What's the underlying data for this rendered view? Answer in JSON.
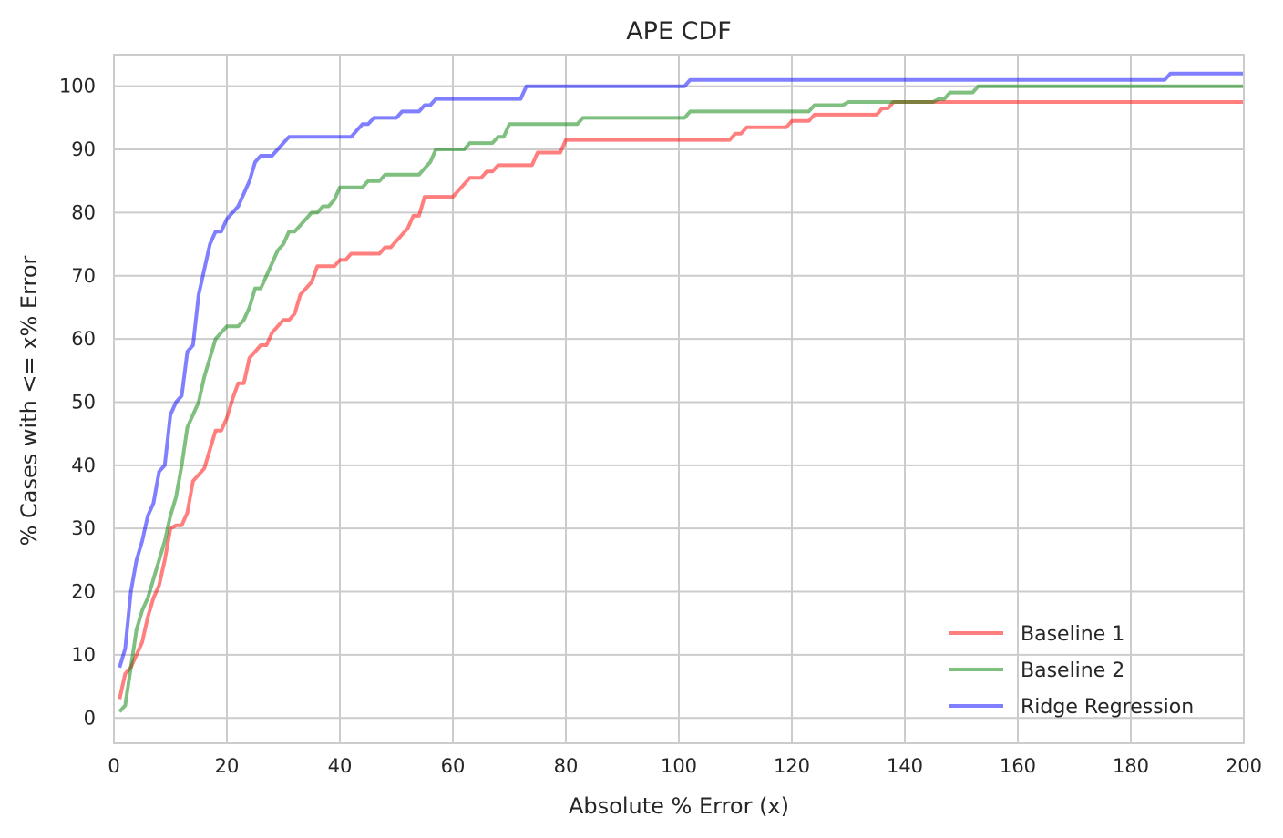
{
  "chart_data": {
    "type": "line",
    "title": "APE CDF",
    "xlabel": "Absolute % Error (x)",
    "ylabel": "% Cases with <= x% Error",
    "xlim": [
      0,
      200
    ],
    "ylim": [
      -4,
      105
    ],
    "xticks": [
      0,
      20,
      40,
      60,
      80,
      100,
      120,
      140,
      160,
      180,
      200
    ],
    "yticks": [
      0,
      10,
      20,
      30,
      40,
      50,
      60,
      70,
      80,
      90,
      100
    ],
    "grid": true,
    "legend_position": "lower-right",
    "series": [
      {
        "name": "Baseline 1",
        "color": "#ff0000",
        "opacity": 0.5,
        "points": [
          [
            1,
            3
          ],
          [
            2,
            7
          ],
          [
            3,
            8
          ],
          [
            4,
            10
          ],
          [
            5,
            12
          ],
          [
            6,
            16
          ],
          [
            7,
            19
          ],
          [
            8,
            21
          ],
          [
            9,
            25
          ],
          [
            10,
            30
          ],
          [
            11,
            30.5
          ],
          [
            12,
            30.5
          ],
          [
            13,
            32.5
          ],
          [
            14,
            37.5
          ],
          [
            15,
            38.5
          ],
          [
            16,
            39.5
          ],
          [
            17,
            42.5
          ],
          [
            18,
            45.5
          ],
          [
            19,
            45.5
          ],
          [
            20,
            47.5
          ],
          [
            21,
            50.5
          ],
          [
            22,
            53
          ],
          [
            23,
            53
          ],
          [
            24,
            57
          ],
          [
            25,
            58
          ],
          [
            26,
            59
          ],
          [
            27,
            59
          ],
          [
            28,
            61
          ],
          [
            29,
            62
          ],
          [
            30,
            63
          ],
          [
            31,
            63
          ],
          [
            32,
            64
          ],
          [
            33,
            67
          ],
          [
            34,
            68
          ],
          [
            35,
            69
          ],
          [
            36,
            71.5
          ],
          [
            37,
            71.5
          ],
          [
            38,
            71.5
          ],
          [
            39,
            71.5
          ],
          [
            40,
            72.5
          ],
          [
            41,
            72.5
          ],
          [
            42,
            73.5
          ],
          [
            43,
            73.5
          ],
          [
            44,
            73.5
          ],
          [
            45,
            73.5
          ],
          [
            46,
            73.5
          ],
          [
            47,
            73.5
          ],
          [
            48,
            74.5
          ],
          [
            49,
            74.5
          ],
          [
            50,
            75.5
          ],
          [
            51,
            76.5
          ],
          [
            52,
            77.5
          ],
          [
            53,
            79.5
          ],
          [
            54,
            79.5
          ],
          [
            55,
            82.5
          ],
          [
            56,
            82.5
          ],
          [
            57,
            82.5
          ],
          [
            58,
            82.5
          ],
          [
            59,
            82.5
          ],
          [
            60,
            82.5
          ],
          [
            61,
            83.5
          ],
          [
            62,
            84.5
          ],
          [
            63,
            85.5
          ],
          [
            64,
            85.5
          ],
          [
            65,
            85.5
          ],
          [
            66,
            86.5
          ],
          [
            67,
            86.5
          ],
          [
            68,
            87.5
          ],
          [
            69,
            87.5
          ],
          [
            70,
            87.5
          ],
          [
            71,
            87.5
          ],
          [
            72,
            87.5
          ],
          [
            73,
            87.5
          ],
          [
            74,
            87.5
          ],
          [
            75,
            89.5
          ],
          [
            76,
            89.5
          ],
          [
            77,
            89.5
          ],
          [
            78,
            89.5
          ],
          [
            79,
            89.5
          ],
          [
            80,
            91.5
          ],
          [
            100,
            91.5
          ],
          [
            109,
            91.5
          ],
          [
            110,
            92.5
          ],
          [
            111,
            92.5
          ],
          [
            112,
            93.5
          ],
          [
            118,
            93.5
          ],
          [
            119,
            93.5
          ],
          [
            120,
            94.5
          ],
          [
            122,
            94.5
          ],
          [
            123,
            94.5
          ],
          [
            124,
            95.5
          ],
          [
            135,
            95.5
          ],
          [
            136,
            96.5
          ],
          [
            137,
            96.5
          ],
          [
            138,
            97.5
          ],
          [
            145,
            97.5
          ],
          [
            146,
            97.5
          ],
          [
            147,
            97.5
          ],
          [
            200,
            97.5
          ]
        ]
      },
      {
        "name": "Baseline 2",
        "color": "#008000",
        "opacity": 0.5,
        "points": [
          [
            1,
            1
          ],
          [
            2,
            2
          ],
          [
            3,
            8
          ],
          [
            4,
            14
          ],
          [
            5,
            17
          ],
          [
            6,
            19
          ],
          [
            7,
            22
          ],
          [
            8,
            25
          ],
          [
            9,
            28
          ],
          [
            10,
            32
          ],
          [
            11,
            35
          ],
          [
            12,
            40
          ],
          [
            13,
            46
          ],
          [
            14,
            48
          ],
          [
            15,
            50
          ],
          [
            16,
            54
          ],
          [
            17,
            57
          ],
          [
            18,
            60
          ],
          [
            19,
            61
          ],
          [
            20,
            62
          ],
          [
            21,
            62
          ],
          [
            22,
            62
          ],
          [
            23,
            63
          ],
          [
            24,
            65
          ],
          [
            25,
            68
          ],
          [
            26,
            68
          ],
          [
            27,
            70
          ],
          [
            28,
            72
          ],
          [
            29,
            74
          ],
          [
            30,
            75
          ],
          [
            31,
            77
          ],
          [
            32,
            77
          ],
          [
            33,
            78
          ],
          [
            34,
            79
          ],
          [
            35,
            80
          ],
          [
            36,
            80
          ],
          [
            37,
            81
          ],
          [
            38,
            81
          ],
          [
            39,
            82
          ],
          [
            40,
            84
          ],
          [
            41,
            84
          ],
          [
            42,
            84
          ],
          [
            43,
            84
          ],
          [
            44,
            84
          ],
          [
            45,
            85
          ],
          [
            46,
            85
          ],
          [
            47,
            85
          ],
          [
            48,
            86
          ],
          [
            49,
            86
          ],
          [
            50,
            86
          ],
          [
            51,
            86
          ],
          [
            52,
            86
          ],
          [
            53,
            86
          ],
          [
            54,
            86
          ],
          [
            55,
            87
          ],
          [
            56,
            88
          ],
          [
            57,
            90
          ],
          [
            58,
            90
          ],
          [
            59,
            90
          ],
          [
            60,
            90
          ],
          [
            61,
            90
          ],
          [
            62,
            90
          ],
          [
            63,
            91
          ],
          [
            64,
            91
          ],
          [
            65,
            91
          ],
          [
            66,
            91
          ],
          [
            67,
            91
          ],
          [
            68,
            92
          ],
          [
            69,
            92
          ],
          [
            70,
            94
          ],
          [
            80,
            94
          ],
          [
            81,
            94
          ],
          [
            82,
            94
          ],
          [
            83,
            95
          ],
          [
            100,
            95
          ],
          [
            101,
            95
          ],
          [
            102,
            96
          ],
          [
            120,
            96
          ],
          [
            121,
            96
          ],
          [
            123,
            96
          ],
          [
            124,
            97
          ],
          [
            128,
            97
          ],
          [
            129,
            97
          ],
          [
            130,
            97.5
          ],
          [
            145,
            97.5
          ],
          [
            146,
            98
          ],
          [
            147,
            98
          ],
          [
            148,
            99
          ],
          [
            152,
            99
          ],
          [
            153,
            100
          ],
          [
            200,
            100
          ]
        ]
      },
      {
        "name": "Ridge Regression",
        "color": "#0000ff",
        "opacity": 0.5,
        "points": [
          [
            1,
            8
          ],
          [
            2,
            11
          ],
          [
            3,
            20
          ],
          [
            4,
            25
          ],
          [
            5,
            28
          ],
          [
            6,
            32
          ],
          [
            7,
            34
          ],
          [
            8,
            39
          ],
          [
            9,
            40
          ],
          [
            10,
            48
          ],
          [
            11,
            50
          ],
          [
            12,
            51
          ],
          [
            13,
            58
          ],
          [
            14,
            59
          ],
          [
            15,
            67
          ],
          [
            16,
            71
          ],
          [
            17,
            75
          ],
          [
            18,
            77
          ],
          [
            19,
            77
          ],
          [
            20,
            79
          ],
          [
            21,
            80
          ],
          [
            22,
            81
          ],
          [
            23,
            83
          ],
          [
            24,
            85
          ],
          [
            25,
            88
          ],
          [
            26,
            89
          ],
          [
            27,
            89
          ],
          [
            28,
            89
          ],
          [
            29,
            90
          ],
          [
            30,
            91
          ],
          [
            31,
            92
          ],
          [
            32,
            92
          ],
          [
            33,
            92
          ],
          [
            34,
            92
          ],
          [
            35,
            92
          ],
          [
            36,
            92
          ],
          [
            37,
            92
          ],
          [
            38,
            92
          ],
          [
            39,
            92
          ],
          [
            40,
            92
          ],
          [
            41,
            92
          ],
          [
            42,
            92
          ],
          [
            43,
            93
          ],
          [
            44,
            94
          ],
          [
            45,
            94
          ],
          [
            46,
            95
          ],
          [
            47,
            95
          ],
          [
            48,
            95
          ],
          [
            49,
            95
          ],
          [
            50,
            95
          ],
          [
            51,
            96
          ],
          [
            52,
            96
          ],
          [
            53,
            96
          ],
          [
            54,
            96
          ],
          [
            55,
            97
          ],
          [
            56,
            97
          ],
          [
            57,
            98
          ],
          [
            58,
            98
          ],
          [
            59,
            98
          ],
          [
            60,
            98
          ],
          [
            61,
            98
          ],
          [
            62,
            98
          ],
          [
            63,
            98
          ],
          [
            64,
            98
          ],
          [
            65,
            98
          ],
          [
            66,
            98
          ],
          [
            67,
            98
          ],
          [
            68,
            98
          ],
          [
            69,
            98
          ],
          [
            70,
            98
          ],
          [
            71,
            98
          ],
          [
            72,
            98
          ],
          [
            73,
            100
          ],
          [
            100,
            100
          ],
          [
            101,
            100
          ],
          [
            102,
            101
          ],
          [
            120,
            101
          ],
          [
            186,
            101
          ],
          [
            187,
            102
          ],
          [
            200,
            102
          ]
        ]
      }
    ]
  }
}
